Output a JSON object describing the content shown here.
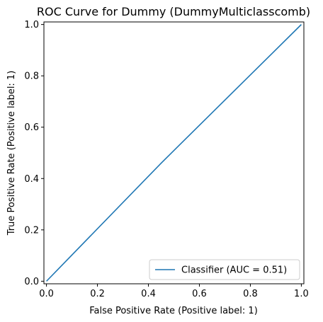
{
  "chart_data": {
    "type": "line",
    "title": "ROC Curve for Dummy (DummyMulticlasscomb)",
    "xlabel": "False Positive Rate (Positive label: 1)",
    "ylabel": "True Positive Rate (Positive label: 1)",
    "xlim": [
      -0.01,
      1.01
    ],
    "ylim": [
      -0.01,
      1.01
    ],
    "xticks": [
      0.0,
      0.2,
      0.4,
      0.6,
      0.8,
      1.0
    ],
    "yticks": [
      0.0,
      0.2,
      0.4,
      0.6,
      0.8,
      1.0
    ],
    "xtick_labels": [
      "0.0",
      "0.2",
      "0.4",
      "0.6",
      "0.8",
      "1.0"
    ],
    "ytick_labels": [
      "0.0",
      "0.2",
      "0.4",
      "0.6",
      "0.8",
      "1.0"
    ],
    "grid": false,
    "legend_position": "lower-right",
    "series": [
      {
        "name": "Classifier (AUC = 0.51)",
        "color": "#1f77b4",
        "x": [
          0.0,
          0.45,
          1.0
        ],
        "y": [
          0.0,
          0.46,
          1.0
        ]
      }
    ]
  }
}
